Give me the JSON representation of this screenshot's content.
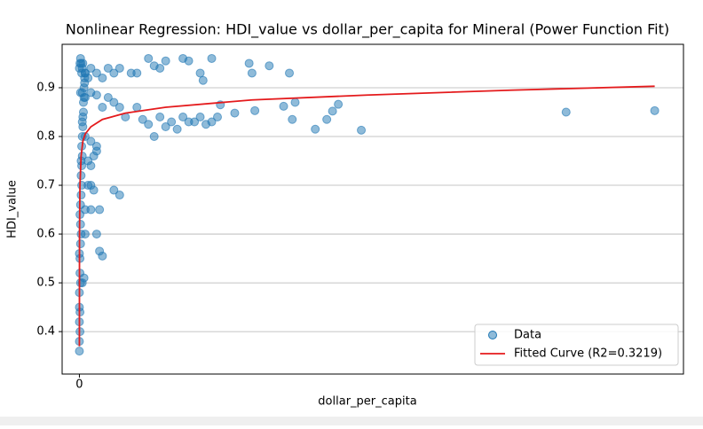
{
  "chart_data": {
    "type": "scatter",
    "title": "Nonlinear Regression: HDI_value vs dollar_per_capita for Mineral (Power Function Fit)",
    "x_label": "dollar_per_capita",
    "y_label": "HDI_value",
    "xlim": [
      -3,
      105
    ],
    "ylim": [
      0.313,
      0.989
    ],
    "xticks": [
      0
    ],
    "yticks": [
      0.4,
      0.5,
      0.6,
      0.7,
      0.8,
      0.9
    ],
    "grid": "y",
    "legend": "lower right",
    "series": [
      {
        "name": "Data",
        "type": "scatter",
        "color": "#1f77b4",
        "x": [
          0,
          0,
          0,
          0,
          0,
          0.1,
          0.1,
          0.1,
          0.1,
          0.2,
          0.2,
          0.2,
          0.2,
          0.3,
          0.3,
          0.3,
          0.4,
          0.4,
          0.4,
          0.5,
          0.5,
          0.6,
          0.6,
          0.7,
          0.7,
          0.8,
          0.8,
          0.9,
          0.9,
          1,
          0,
          0.1,
          0.2,
          0,
          0.1,
          0.3,
          0.5,
          0.2,
          0.4,
          0.6,
          0.3,
          0.5,
          1,
          1.5,
          2,
          3,
          4,
          5,
          6,
          7,
          9,
          10,
          12,
          13,
          14,
          15,
          18,
          19,
          21,
          21.5,
          23,
          29.5,
          30,
          33,
          36.5,
          0.5,
          1,
          2,
          3,
          4,
          5,
          6,
          7,
          8,
          10,
          11,
          12,
          13,
          14,
          15,
          16,
          17,
          18,
          19,
          20,
          21,
          22,
          23,
          24,
          24.5,
          27,
          30.5,
          35.5,
          37,
          37.5,
          41,
          43,
          44,
          45,
          49,
          84.6,
          100,
          1,
          2,
          3,
          1.5,
          2,
          2.5,
          3,
          1.5,
          2,
          2.5,
          6,
          7,
          1,
          2,
          3.5,
          1,
          3,
          3.5,
          4,
          0.8,
          0.5
        ],
        "values": [
          0.36,
          0.38,
          0.42,
          0.45,
          0.48,
          0.4,
          0.44,
          0.52,
          0.55,
          0.5,
          0.58,
          0.62,
          0.66,
          0.6,
          0.68,
          0.72,
          0.7,
          0.74,
          0.78,
          0.76,
          0.8,
          0.82,
          0.84,
          0.85,
          0.87,
          0.88,
          0.9,
          0.91,
          0.92,
          0.93,
          0.94,
          0.95,
          0.96,
          0.56,
          0.64,
          0.75,
          0.83,
          0.89,
          0.93,
          0.95,
          0.95,
          0.94,
          0.93,
          0.92,
          0.94,
          0.93,
          0.92,
          0.94,
          0.93,
          0.94,
          0.93,
          0.93,
          0.96,
          0.945,
          0.94,
          0.955,
          0.96,
          0.955,
          0.93,
          0.915,
          0.96,
          0.95,
          0.93,
          0.945,
          0.93,
          0.89,
          0.88,
          0.89,
          0.885,
          0.86,
          0.88,
          0.87,
          0.86,
          0.84,
          0.86,
          0.835,
          0.825,
          0.8,
          0.84,
          0.82,
          0.83,
          0.815,
          0.84,
          0.83,
          0.83,
          0.84,
          0.825,
          0.83,
          0.84,
          0.865,
          0.848,
          0.853,
          0.862,
          0.835,
          0.87,
          0.815,
          0.835,
          0.852,
          0.866,
          0.813,
          0.85,
          0.853,
          0.8,
          0.79,
          0.78,
          0.75,
          0.74,
          0.76,
          0.77,
          0.7,
          0.7,
          0.69,
          0.69,
          0.68,
          0.65,
          0.65,
          0.65,
          0.6,
          0.6,
          0.565,
          0.555,
          0.51,
          0.5
        ]
      },
      {
        "name": "Fitted Curve (R2=0.3219)",
        "type": "line",
        "color": "#e41a1c",
        "x": [
          0,
          0.02,
          0.1,
          0.3,
          0.6,
          1,
          2,
          4,
          8,
          15,
          30,
          50,
          75,
          100
        ],
        "values": [
          0.37,
          0.6,
          0.7,
          0.76,
          0.79,
          0.805,
          0.82,
          0.835,
          0.848,
          0.86,
          0.875,
          0.885,
          0.895,
          0.903
        ]
      }
    ]
  }
}
